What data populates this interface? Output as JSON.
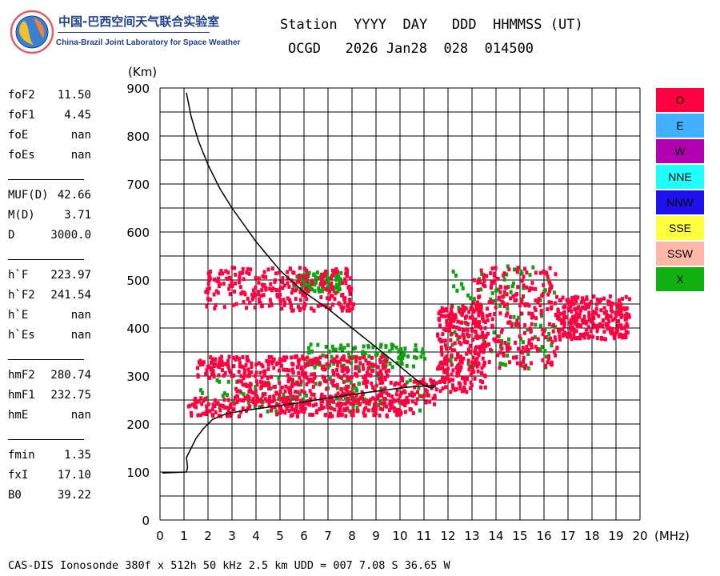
{
  "org": {
    "name_cn": "中国-巴西空间天气联合实验室",
    "name_en": "China-Brazil Joint Laboratory for Space Weather"
  },
  "header": {
    "line1": "Station  YYYY  DAY   DDD  HHMMSS (UT)",
    "line2": "OCGD   2026 Jan28  028  014500"
  },
  "params": [
    {
      "name": "foF2",
      "value": "11.50"
    },
    {
      "name": "foF1",
      "value": "4.45"
    },
    {
      "name": "foE",
      "value": "nan"
    },
    {
      "name": "foEs",
      "value": "nan"
    },
    {
      "name": "MUF(D)",
      "value": "42.66"
    },
    {
      "name": "M(D)",
      "value": "3.71"
    },
    {
      "name": "D",
      "value": "3000.0"
    },
    {
      "name": "h`F",
      "value": "223.97"
    },
    {
      "name": "h`F2",
      "value": "241.54"
    },
    {
      "name": "h`E",
      "value": "nan"
    },
    {
      "name": "h`Es",
      "value": "nan"
    },
    {
      "name": "hmF2",
      "value": "280.74"
    },
    {
      "name": "hmF1",
      "value": "232.75"
    },
    {
      "name": "hmE",
      "value": "nan"
    },
    {
      "name": "fmin",
      "value": "1.35"
    },
    {
      "name": "fxI",
      "value": "17.10"
    },
    {
      "name": "B0",
      "value": "39.22"
    }
  ],
  "legend": [
    {
      "label": "O",
      "color": "#ff0040"
    },
    {
      "label": "E",
      "color": "#40b0ff"
    },
    {
      "label": "W",
      "color": "#b000b0"
    },
    {
      "label": "NNE",
      "color": "#20ffff"
    },
    {
      "label": "NNW",
      "color": "#2010ee"
    },
    {
      "label": "SSE",
      "color": "#ffff40"
    },
    {
      "label": "SSW",
      "color": "#ffb8a8"
    },
    {
      "label": "X",
      "color": "#10b010"
    }
  ],
  "footer": "CAS-DIS Ionosonde 380f x 512h 50 kHz 2.5 km UDD = 007 7.08 S 36.65 W",
  "chart_data": {
    "type": "scatter",
    "xlabel": "(MHz)",
    "ylabel": "(Km)",
    "xlim": [
      0,
      20
    ],
    "ylim": [
      0,
      900
    ],
    "x_ticks": [
      "0",
      "1",
      "2",
      "3",
      "4",
      "5",
      "6",
      "7",
      "8",
      "9",
      "10",
      "11",
      "12",
      "13",
      "14",
      "15",
      "16",
      "17",
      "18",
      "19",
      "20"
    ],
    "y_ticks": [
      "0",
      "100",
      "200",
      "300",
      "400",
      "500",
      "600",
      "700",
      "800",
      "900"
    ],
    "grid": true,
    "legend_position": "right",
    "profile": {
      "x": [
        0.1,
        1.1,
        1.15,
        1.1,
        1.3,
        1.5,
        1.8,
        2.2,
        2.8,
        3.5,
        4.5,
        5.5,
        6.5,
        7.5,
        8.5,
        9.3,
        10.0,
        10.6,
        11.0,
        11.3,
        11.5
      ],
      "y": [
        98,
        100,
        110,
        130,
        150,
        170,
        190,
        210,
        222,
        228,
        235,
        242,
        250,
        258,
        265,
        270,
        275,
        278,
        279,
        280,
        281
      ]
    },
    "virtual_trace": {
      "x": [
        1.1,
        1.3,
        1.6,
        2.0,
        2.5,
        3.0,
        4.0,
        5.0,
        6.0,
        7.0,
        8.0,
        9.0,
        10.0,
        10.6,
        11.0,
        11.3,
        11.5
      ],
      "y": [
        890,
        840,
        790,
        740,
        690,
        650,
        580,
        520,
        475,
        440,
        400,
        360,
        320,
        295,
        280,
        275,
        278
      ]
    },
    "echo_regions_o": [
      {
        "x": [
          1.1,
          10.5
        ],
        "y": [
          220,
          260
        ]
      },
      {
        "x": [
          3.0,
          11.5
        ],
        "y": [
          245,
          300
        ]
      },
      {
        "x": [
          1.5,
          9.5
        ],
        "y": [
          300,
          345
        ]
      },
      {
        "x": [
          1.8,
          8.0
        ],
        "y": [
          440,
          530
        ]
      },
      {
        "x": [
          11.5,
          13.5
        ],
        "y": [
          270,
          450
        ]
      },
      {
        "x": [
          13.0,
          16.5
        ],
        "y": [
          320,
          530
        ]
      },
      {
        "x": [
          16.5,
          19.5
        ],
        "y": [
          380,
          470
        ]
      }
    ],
    "echo_regions_x": [
      {
        "x": [
          1.5,
          11.0
        ],
        "y": [
          230,
          300
        ]
      },
      {
        "x": [
          6.0,
          11.0
        ],
        "y": [
          320,
          370
        ]
      },
      {
        "x": [
          5.5,
          7.5
        ],
        "y": [
          480,
          520
        ]
      },
      {
        "x": [
          12.0,
          16.5
        ],
        "y": [
          320,
          540
        ]
      }
    ]
  }
}
